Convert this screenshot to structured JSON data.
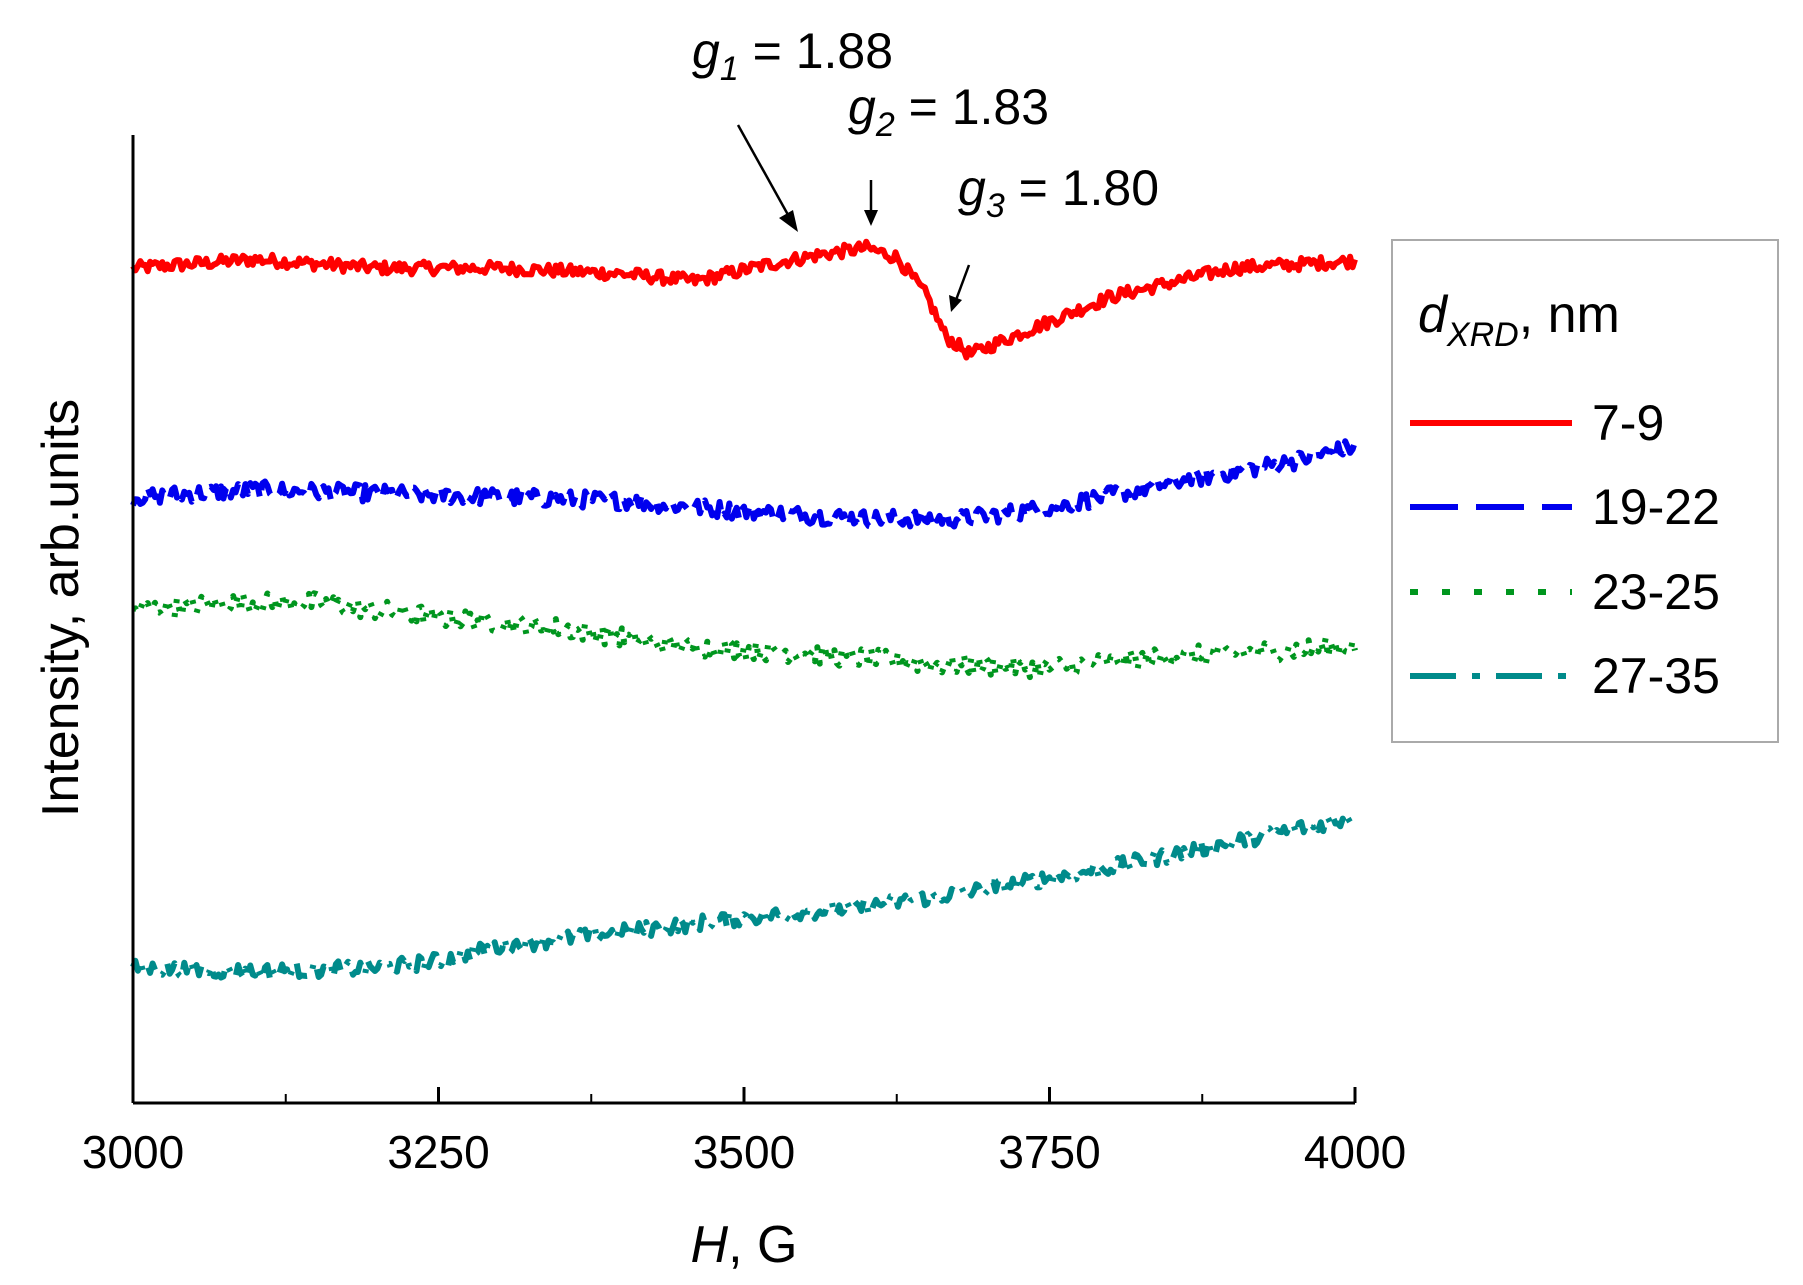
{
  "chart_data": {
    "type": "line",
    "title": "",
    "xlabel": {
      "var": "H",
      "rest": ", G"
    },
    "ylabel": "Intensity, arb.units",
    "xlim": [
      3000,
      4000
    ],
    "x_ticks": [
      3000,
      3250,
      3500,
      3750,
      4000
    ],
    "x_minor_ticks": [
      3125,
      3375,
      3625,
      3875
    ],
    "y_ticks": [],
    "grid": false,
    "legend": {
      "placement": "right",
      "title_var": "d",
      "title_sub": "XRD",
      "title_rest": ", nm"
    },
    "series": [
      {
        "name": "7-9",
        "color": "#ff0000",
        "style": "solid",
        "noise": 0.09,
        "points": [
          [
            3000,
            0.0
          ],
          [
            3100,
            0.12
          ],
          [
            3200,
            0.0
          ],
          [
            3300,
            0.0
          ],
          [
            3400,
            -0.08
          ],
          [
            3460,
            -0.18
          ],
          [
            3520,
            0.05
          ],
          [
            3560,
            0.18
          ],
          [
            3600,
            0.28
          ],
          [
            3625,
            0.15
          ],
          [
            3650,
            -0.4
          ],
          [
            3665,
            -0.95
          ],
          [
            3685,
            -1.2
          ],
          [
            3720,
            -0.95
          ],
          [
            3800,
            -0.4
          ],
          [
            3900,
            0.0
          ],
          [
            4000,
            0.1
          ]
        ]
      },
      {
        "name": "19-22",
        "color": "#0000ee",
        "style": "dashed",
        "noise": 0.12,
        "points": [
          [
            3000,
            0.0
          ],
          [
            3100,
            0.1
          ],
          [
            3200,
            0.05
          ],
          [
            3300,
            0.0
          ],
          [
            3400,
            -0.05
          ],
          [
            3500,
            -0.2
          ],
          [
            3600,
            -0.3
          ],
          [
            3680,
            -0.3
          ],
          [
            3750,
            -0.15
          ],
          [
            3850,
            0.2
          ],
          [
            3950,
            0.5
          ],
          [
            4000,
            0.7
          ]
        ]
      },
      {
        "name": "23-25",
        "color": "#00961e",
        "style": "dotted",
        "noise": 0.14,
        "points": [
          [
            3000,
            0.0
          ],
          [
            3080,
            0.1
          ],
          [
            3150,
            0.1
          ],
          [
            3250,
            -0.1
          ],
          [
            3350,
            -0.25
          ],
          [
            3450,
            -0.5
          ],
          [
            3550,
            -0.6
          ],
          [
            3650,
            -0.75
          ],
          [
            3750,
            -0.8
          ],
          [
            3850,
            -0.65
          ],
          [
            3950,
            -0.55
          ],
          [
            4000,
            -0.5
          ]
        ]
      },
      {
        "name": "27-35",
        "color": "#008b8b",
        "style": "dashdot",
        "noise": 0.11,
        "points": [
          [
            3000,
            0.0
          ],
          [
            3100,
            -0.05
          ],
          [
            3200,
            0.0
          ],
          [
            3250,
            0.1
          ],
          [
            3300,
            0.3
          ],
          [
            3400,
            0.5
          ],
          [
            3500,
            0.7
          ],
          [
            3600,
            0.85
          ],
          [
            3700,
            1.1
          ],
          [
            3800,
            1.4
          ],
          [
            3900,
            1.75
          ],
          [
            4000,
            2.1
          ]
        ]
      }
    ],
    "annotations": [
      {
        "var": "g",
        "sub": "1",
        "text": " = 1.88",
        "x": 3555
      },
      {
        "var": "g",
        "sub": "2",
        "text": " = 1.83",
        "x": 3605
      },
      {
        "var": "g",
        "sub": "3",
        "text": " = 1.80",
        "x": 3666
      }
    ]
  }
}
